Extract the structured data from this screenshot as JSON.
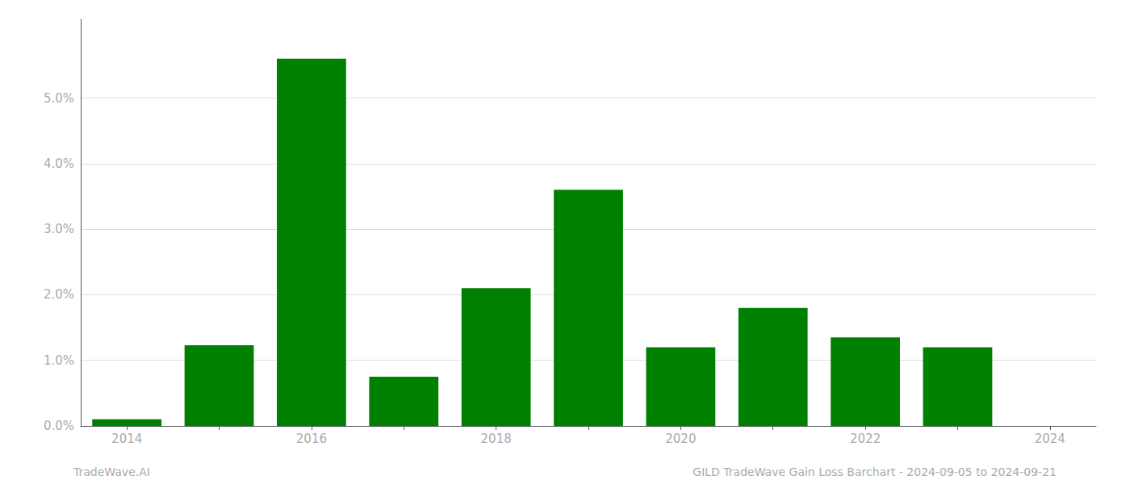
{
  "chart_data": {
    "type": "bar",
    "categories": [
      "2014",
      null,
      "2016",
      null,
      "2018",
      null,
      "2020",
      null,
      "2022",
      null,
      "2024"
    ],
    "values": [
      0.001,
      0.0123,
      0.056,
      0.0075,
      0.021,
      0.036,
      0.012,
      0.018,
      0.0135,
      0.012,
      0.0
    ],
    "color": "#008000",
    "ylim": [
      0,
      0.062
    ],
    "yticks": [
      {
        "value": 0.0,
        "label": "0.0%"
      },
      {
        "value": 0.01,
        "label": "1.0%"
      },
      {
        "value": 0.02,
        "label": "2.0%"
      },
      {
        "value": 0.03,
        "label": "3.0%"
      },
      {
        "value": 0.04,
        "label": "4.0%"
      },
      {
        "value": 0.05,
        "label": "5.0%"
      }
    ],
    "grid": true,
    "annotations": [
      "TradeWave.AI",
      "GILD TradeWave Gain Loss Barchart - 2024-09-05 to 2024-09-21"
    ]
  }
}
